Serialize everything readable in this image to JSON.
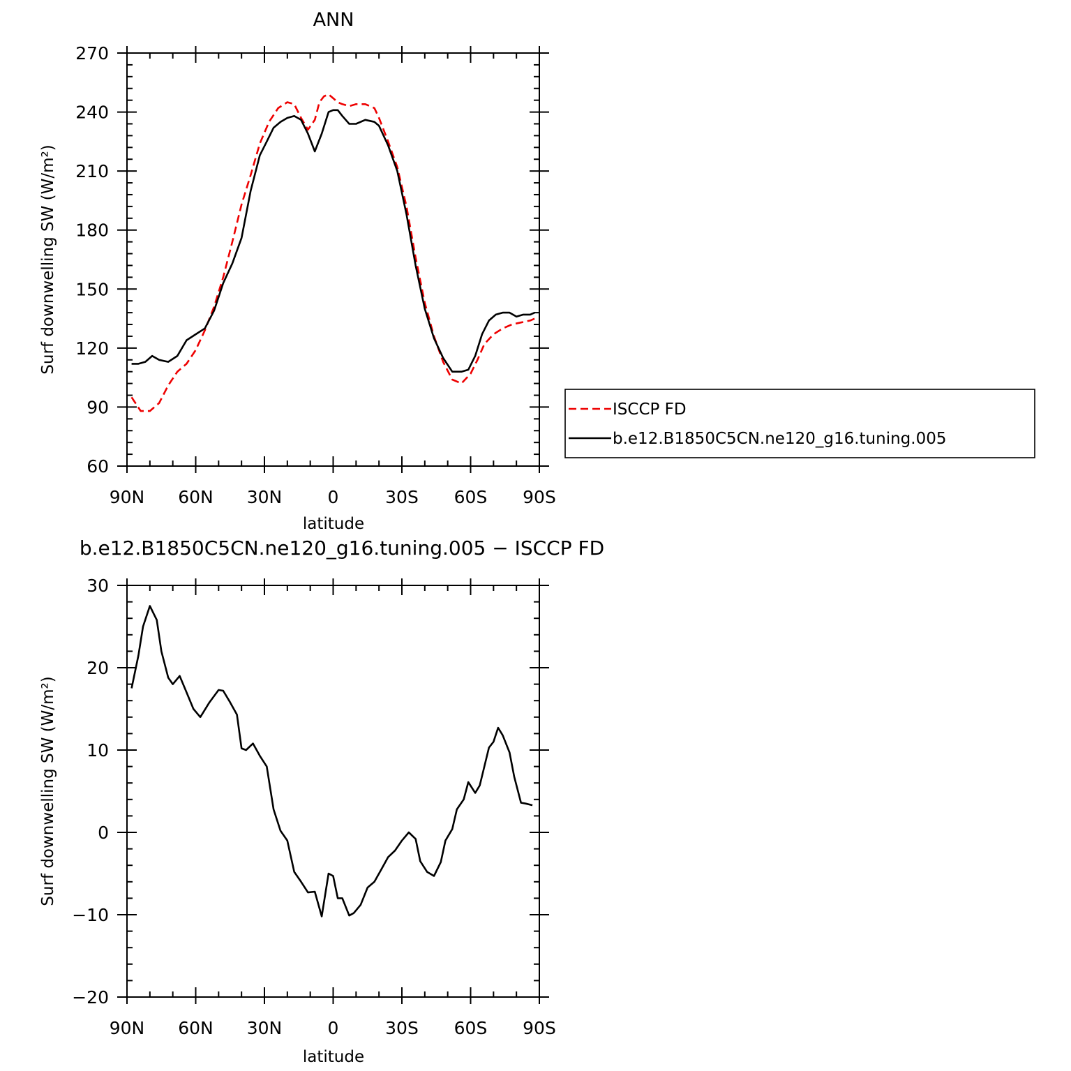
{
  "chart_data": [
    {
      "type": "line",
      "title": "ANN",
      "xlabel": "latitude",
      "ylabel": "Surf downwelling SW (W/m²)",
      "xlim": [
        90,
        -90
      ],
      "ylim": [
        60,
        270
      ],
      "xticks": [
        {
          "v": 90,
          "label": "90N"
        },
        {
          "v": 60,
          "label": "60N"
        },
        {
          "v": 30,
          "label": "30N"
        },
        {
          "v": 0,
          "label": "0"
        },
        {
          "v": -30,
          "label": "30S"
        },
        {
          "v": -60,
          "label": "60S"
        },
        {
          "v": -90,
          "label": "90S"
        }
      ],
      "yticks": [
        60,
        90,
        120,
        150,
        180,
        210,
        240,
        270
      ],
      "legend_placement": "right",
      "series": [
        {
          "name": "ISCCP FD",
          "color": "#ee0000",
          "dash": "dashed",
          "x": [
            88,
            84,
            80,
            76,
            72,
            68,
            64,
            60,
            56,
            52,
            48,
            44,
            40,
            36,
            32,
            28,
            24,
            20,
            17,
            14,
            11,
            8,
            6,
            4,
            2,
            0,
            -2,
            -4,
            -7,
            -10,
            -14,
            -18,
            -20,
            -24,
            -28,
            -32,
            -36,
            -40,
            -44,
            -48,
            -52,
            -56,
            -60,
            -63,
            -66,
            -70,
            -74,
            -78,
            -82,
            -86,
            -88
          ],
          "values": [
            95,
            88,
            88,
            92,
            101,
            108,
            112,
            119,
            129,
            141,
            156,
            174,
            193,
            208,
            224,
            235,
            242,
            245,
            244,
            237,
            231,
            236,
            245,
            248,
            249,
            247,
            245,
            244,
            243,
            244,
            244,
            242,
            237,
            225,
            212,
            192,
            166,
            143,
            126,
            113,
            104,
            102,
            107,
            114,
            122,
            127,
            130,
            132,
            133,
            134,
            135
          ]
        },
        {
          "name": "b.e12.B1850C5CN.ne120_g16.tuning.005",
          "color": "#000000",
          "dash": "solid",
          "x": [
            88,
            85,
            82,
            79,
            76,
            72,
            68,
            64,
            60,
            56,
            52,
            48,
            44,
            40,
            36,
            32,
            29,
            26,
            23,
            20,
            17,
            14,
            11,
            8,
            5,
            2,
            0,
            -2,
            -4,
            -7,
            -10,
            -14,
            -18,
            -20,
            -24,
            -28,
            -32,
            -36,
            -40,
            -44,
            -48,
            -52,
            -56,
            -59,
            -62,
            -65,
            -68,
            -71,
            -74,
            -77,
            -80,
            -83,
            -86,
            -88
          ],
          "values": [
            112,
            112,
            113,
            116,
            114,
            113,
            116,
            124,
            127,
            130,
            139,
            153,
            163,
            176,
            200,
            218,
            225,
            232,
            235,
            237,
            238,
            236,
            229,
            220,
            229,
            240,
            241,
            241,
            238,
            234,
            234,
            236,
            235,
            233,
            223,
            210,
            188,
            162,
            140,
            125,
            115,
            108,
            108,
            109,
            116,
            127,
            134,
            137,
            138,
            138,
            136,
            137,
            137,
            138
          ]
        }
      ]
    },
    {
      "type": "line",
      "title": "b.e12.B1850C5CN.ne120_g16.tuning.005 − ISCCP FD",
      "xlabel": "latitude",
      "ylabel": "Surf downwelling SW (W/m²)",
      "xlim": [
        90,
        -90
      ],
      "ylim": [
        -20,
        30
      ],
      "xticks": [
        {
          "v": 90,
          "label": "90N"
        },
        {
          "v": 60,
          "label": "60N"
        },
        {
          "v": 30,
          "label": "30N"
        },
        {
          "v": 0,
          "label": "0"
        },
        {
          "v": -30,
          "label": "30S"
        },
        {
          "v": -60,
          "label": "60S"
        },
        {
          "v": -90,
          "label": "90S"
        }
      ],
      "yticks": [
        -20,
        -10,
        0,
        10,
        20,
        30
      ],
      "series": [
        {
          "color": "#000000",
          "dash": "solid",
          "x": [
            88,
            85,
            83,
            80,
            77,
            75,
            72,
            70,
            67,
            64,
            61,
            58,
            54,
            50,
            48,
            45,
            42,
            40,
            38,
            35,
            32,
            29,
            26,
            23,
            20,
            17,
            14,
            11,
            8,
            5,
            2,
            0,
            -2,
            -4,
            -7,
            -9,
            -12,
            -15,
            -18,
            -21,
            -24,
            -27,
            -30,
            -33,
            -36,
            -38,
            -41,
            -44,
            -47,
            -49,
            -52,
            -54,
            -57,
            -59,
            -62,
            -64,
            -68,
            -70,
            -72,
            -74,
            -77,
            -79,
            -82,
            -84,
            -87
          ],
          "values": [
            17.5,
            21.5,
            25,
            27.5,
            25.8,
            22,
            18.8,
            18,
            19,
            17,
            15,
            14,
            15.8,
            17.3,
            17.2,
            15.8,
            14.3,
            10.2,
            10,
            10.8,
            9.3,
            8,
            2.8,
            0.2,
            -1,
            -4.8,
            -6,
            -7.3,
            -7.2,
            -10.2,
            -5,
            -5.3,
            -8,
            -8,
            -10.1,
            -9.8,
            -8.8,
            -6.7,
            -6,
            -4.5,
            -3,
            -2.2,
            -1,
            0,
            -0.8,
            -3.5,
            -4.8,
            -5.3,
            -3.6,
            -1,
            0.4,
            2.8,
            4,
            6.1,
            4.8,
            5.7,
            10.3,
            11,
            12.7,
            11.8,
            9.7,
            6.8,
            3.6,
            3.5,
            3.3
          ]
        }
      ]
    }
  ]
}
